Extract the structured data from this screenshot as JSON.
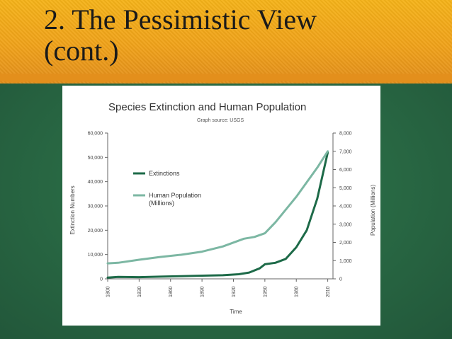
{
  "slide": {
    "title_line1": "2. The Pessimistic View",
    "title_line2": "(cont.)"
  },
  "colors": {
    "banner": "#f0a21a",
    "background": "#2c6b45",
    "extinctions": "#1d6a48",
    "population": "#7cb7a3"
  },
  "chart_data": {
    "type": "line",
    "title": "Species Extinction and Human Population",
    "subtitle": "Graph source: USGS",
    "xlabel": "Time",
    "ylabel_left": "Extinction Numbers",
    "ylabel_right": "Population (Millions)",
    "xlim": [
      1800,
      2015
    ],
    "ylim_left": [
      0,
      60000
    ],
    "ylim_right": [
      0,
      8000
    ],
    "x_ticks": [
      "1800",
      "1830",
      "1860",
      "1890",
      "1920",
      "1950",
      "1980",
      "2010"
    ],
    "y_ticks_left": [
      "0",
      "10,000",
      "20,000",
      "30,000",
      "40,000",
      "50,000",
      "60,000"
    ],
    "y_ticks_right": [
      "0",
      "1,000",
      "2,000",
      "3,000",
      "4,000",
      "5,000",
      "6,000",
      "7,000",
      "8,000"
    ],
    "legend": [
      "Extinctions",
      "Human Population\n(Millions)"
    ],
    "series": [
      {
        "name": "Extinctions",
        "axis": "left",
        "x": [
          1800,
          1810,
          1830,
          1850,
          1870,
          1890,
          1910,
          1925,
          1935,
          1945,
          1950,
          1960,
          1970,
          1980,
          1990,
          2000,
          2010
        ],
        "values": [
          500,
          800,
          700,
          900,
          1100,
          1300,
          1500,
          1900,
          2600,
          4300,
          6000,
          6600,
          8200,
          13000,
          20000,
          33000,
          52000
        ]
      },
      {
        "name": "Human Population (Millions)",
        "axis": "right",
        "x": [
          1800,
          1810,
          1830,
          1850,
          1870,
          1890,
          1910,
          1930,
          1940,
          1950,
          1960,
          1970,
          1980,
          1990,
          2000,
          2010
        ],
        "values": [
          850,
          880,
          1050,
          1200,
          1320,
          1490,
          1780,
          2200,
          2300,
          2500,
          3100,
          3800,
          4500,
          5300,
          6100,
          7000
        ]
      }
    ]
  }
}
